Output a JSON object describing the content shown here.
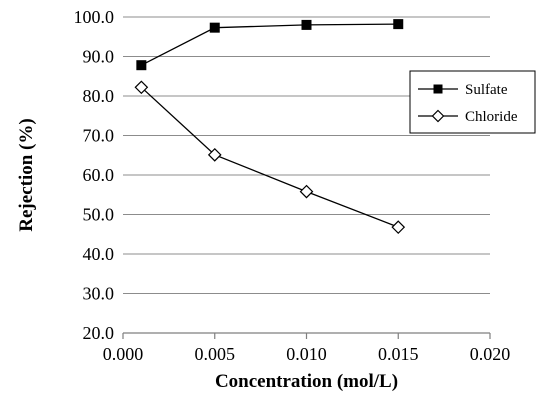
{
  "chart_data": {
    "type": "line",
    "xlabel": "Concentration (mol/L)",
    "ylabel": "Rejection (%)",
    "xlim": [
      0.0,
      0.02
    ],
    "ylim": [
      20.0,
      100.0
    ],
    "x_ticks": [
      "0.000",
      "0.005",
      "0.010",
      "0.015",
      "0.020"
    ],
    "y_ticks": [
      "20.0",
      "30.0",
      "40.0",
      "50.0",
      "60.0",
      "70.0",
      "80.0",
      "90.0",
      "100.0"
    ],
    "grid": "horizontal",
    "legend_position": "right",
    "series": [
      {
        "name": "Sulfate",
        "marker": "filled-square",
        "color": "#000000",
        "x": [
          0.001,
          0.005,
          0.01,
          0.015
        ],
        "y": [
          87.8,
          97.3,
          98.0,
          98.2
        ]
      },
      {
        "name": "Chloride",
        "marker": "open-diamond",
        "color": "#000000",
        "x": [
          0.001,
          0.005,
          0.01,
          0.015
        ],
        "y": [
          82.2,
          65.1,
          55.8,
          46.8
        ]
      }
    ]
  }
}
